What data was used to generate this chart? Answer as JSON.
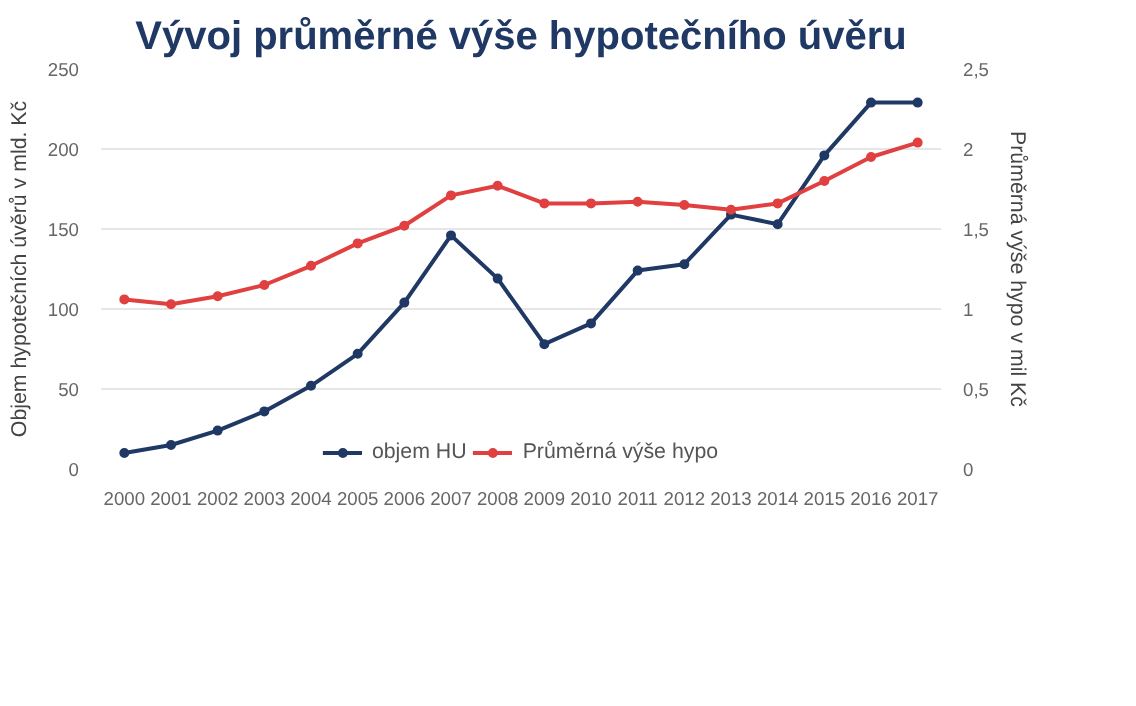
{
  "chart_data": {
    "type": "line",
    "title": "Vývoj průměrné výše hypotečního úvěru",
    "categories": [
      "2000",
      "2001",
      "2002",
      "2003",
      "2004",
      "2005",
      "2006",
      "2007",
      "2008",
      "2009",
      "2010",
      "2011",
      "2012",
      "2013",
      "2014",
      "2015",
      "2016",
      "2017"
    ],
    "series": [
      {
        "name": "objem HU",
        "color": "#1f3864",
        "values": [
          10,
          15,
          24,
          36,
          52,
          72,
          104,
          146,
          119,
          78,
          91,
          124,
          128,
          159,
          153,
          196,
          229,
          229
        ]
      },
      {
        "name": "Průměrná výše hypo",
        "color": "#e04040",
        "axis": "y2",
        "values": [
          1.06,
          1.03,
          1.08,
          1.15,
          1.27,
          1.41,
          1.52,
          1.71,
          1.77,
          1.66,
          1.66,
          1.67,
          1.65,
          1.62,
          1.66,
          1.8,
          1.95,
          2.04
        ]
      }
    ],
    "ylabel": "Objem hypotečních úvěrů v mld. Kč",
    "y2label": "Průměrná výše hypo v mil Kč",
    "ylim": [
      0,
      250
    ],
    "yticks": [
      0,
      50,
      100,
      150,
      200,
      250
    ],
    "y2lim": [
      0,
      2.5
    ],
    "y2ticks": [
      0,
      {
        "value": 0.5,
        "label": "0,5"
      },
      1,
      {
        "value": 1.5,
        "label": "1,5"
      },
      2,
      {
        "value": 2.5,
        "label": "2,5"
      }
    ],
    "grid": "y",
    "legend": "bottom",
    "marker": "circle",
    "line_style": "solid"
  }
}
